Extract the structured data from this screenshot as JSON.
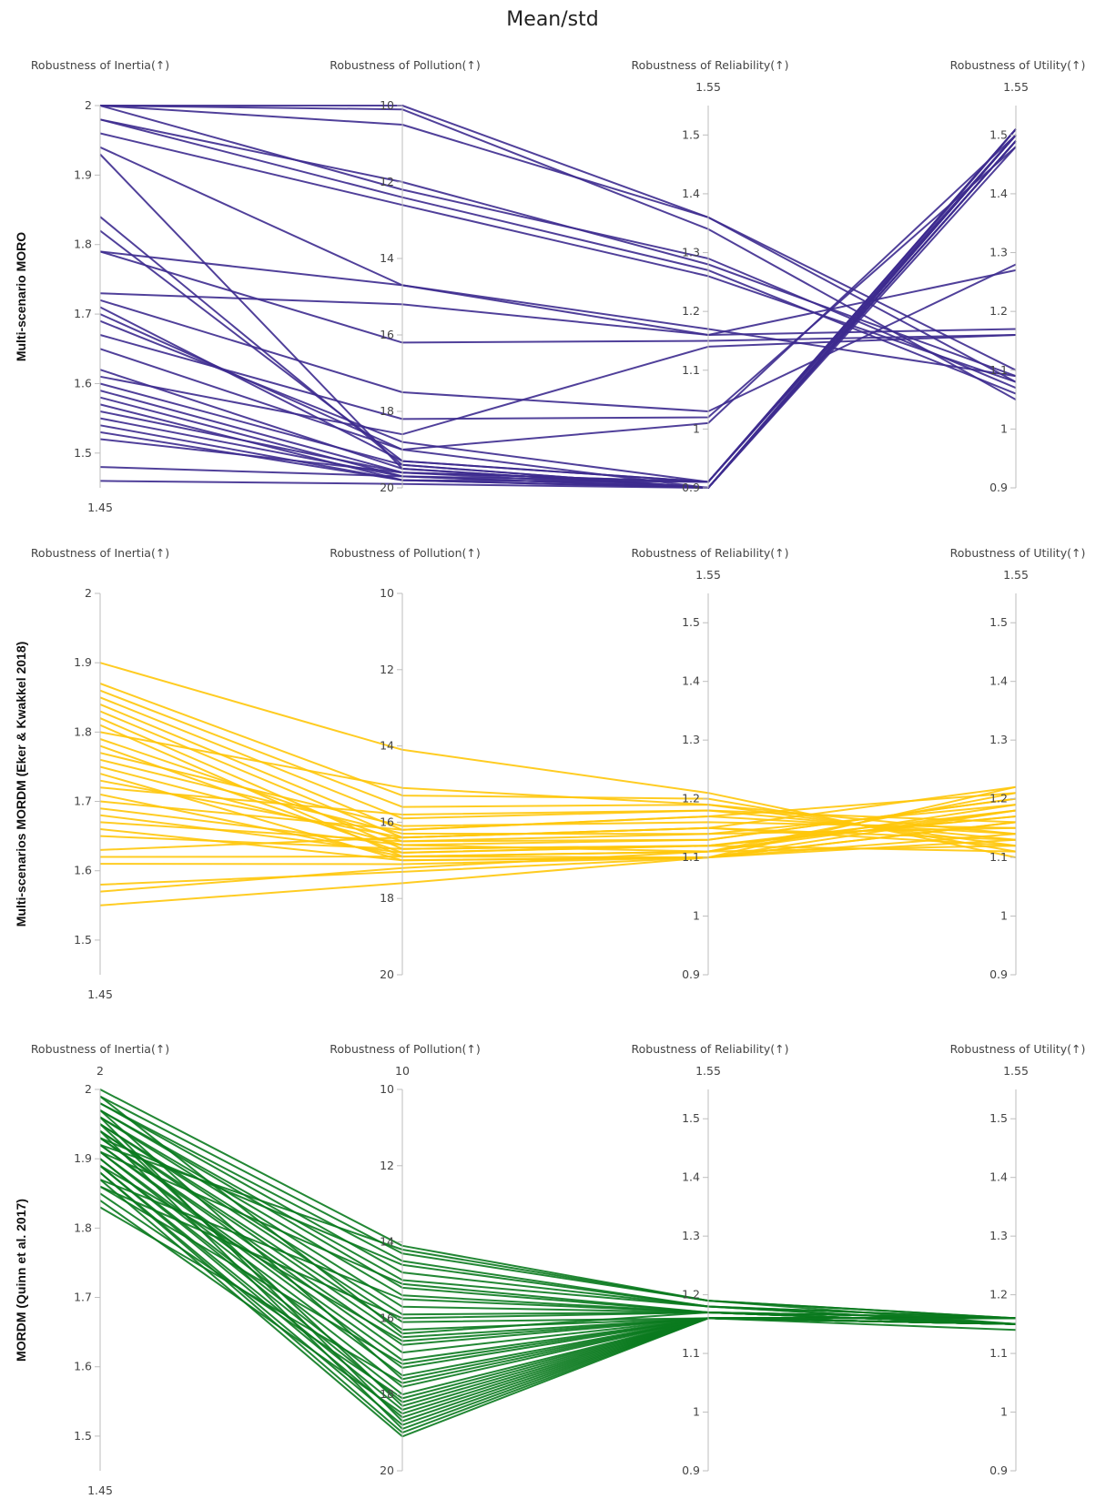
{
  "title": "Mean/std",
  "chart_data": [
    {
      "type": "parallel_coordinates",
      "row_label": "Multi-scenario MORO",
      "color": "#3d2b8f",
      "axes": [
        {
          "label": "Robustness of Inertia(↑)",
          "range": [
            1.45,
            2
          ],
          "ticks": [
            "1.5",
            "1.6",
            "1.7",
            "1.8",
            "1.9",
            "2"
          ],
          "ends": {
            "bottom": "1.45"
          }
        },
        {
          "label": "Robustness of Pollution(↑)",
          "range": [
            20,
            10
          ],
          "ticks": [
            "10",
            "12",
            "14",
            "16",
            "18",
            "20"
          ],
          "ends": {}
        },
        {
          "label": "Robustness of Reliability(↑)",
          "range": [
            0.9,
            1.55
          ],
          "ticks": [
            "0.9",
            "1",
            "1.1",
            "1.2",
            "1.3",
            "1.4",
            "1.5"
          ],
          "ends": {
            "top": "1.55"
          }
        },
        {
          "label": "Robustness of Utility(↑)",
          "range": [
            0.9,
            1.55
          ],
          "ticks": [
            "0.9",
            "1",
            "1.1",
            "1.2",
            "1.3",
            "1.4",
            "1.5"
          ],
          "ends": {
            "top": "1.55"
          }
        }
      ],
      "lines": [
        [
          2.0,
          10.1,
          1.34,
          1.05
        ],
        [
          2.0,
          10.0,
          1.36,
          1.08
        ],
        [
          2.0,
          10.5,
          1.36,
          1.1
        ],
        [
          2.0,
          12.2,
          1.29,
          1.07
        ],
        [
          1.98,
          12.0,
          1.28,
          1.09
        ],
        [
          1.98,
          12.4,
          1.27,
          1.06
        ],
        [
          1.96,
          12.6,
          1.26,
          1.08
        ],
        [
          1.94,
          14.7,
          1.17,
          1.09
        ],
        [
          1.93,
          19.5,
          0.9,
          1.5
        ],
        [
          1.84,
          19.4,
          0.9,
          1.49
        ],
        [
          1.82,
          19.3,
          0.91,
          1.51
        ],
        [
          1.79,
          14.7,
          1.16,
          1.17
        ],
        [
          1.79,
          16.2,
          1.15,
          1.16
        ],
        [
          1.73,
          15.2,
          1.16,
          1.27
        ],
        [
          1.72,
          17.5,
          1.03,
          1.28
        ],
        [
          1.71,
          19.3,
          0.91,
          1.5
        ],
        [
          1.7,
          19.0,
          0.9,
          1.49
        ],
        [
          1.69,
          18.8,
          0.91,
          1.51
        ],
        [
          1.67,
          18.2,
          1.02,
          1.48
        ],
        [
          1.65,
          19.0,
          1.01,
          1.5
        ],
        [
          1.62,
          19.5,
          0.9,
          1.5
        ],
        [
          1.61,
          18.6,
          1.14,
          1.16
        ],
        [
          1.6,
          19.4,
          0.9,
          1.49
        ],
        [
          1.59,
          19.6,
          0.91,
          1.5
        ],
        [
          1.58,
          19.7,
          0.9,
          1.48
        ],
        [
          1.57,
          19.8,
          0.9,
          1.5
        ],
        [
          1.56,
          19.6,
          0.91,
          1.51
        ],
        [
          1.55,
          19.7,
          0.9,
          1.5
        ],
        [
          1.54,
          19.8,
          0.9,
          1.49
        ],
        [
          1.53,
          19.8,
          0.91,
          1.5
        ],
        [
          1.52,
          19.6,
          0.9,
          1.51
        ],
        [
          1.48,
          19.7,
          0.91,
          1.5
        ],
        [
          1.46,
          19.9,
          0.9,
          1.49
        ]
      ]
    },
    {
      "type": "parallel_coordinates",
      "row_label": "Multi-scenarios MORDM (Eker & Kwakkel 2018)",
      "color": "#ffc60a",
      "axes": [
        {
          "label": "Robustness of Inertia(↑)",
          "range": [
            1.45,
            2
          ],
          "ticks": [
            "1.5",
            "1.6",
            "1.7",
            "1.8",
            "1.9",
            "2"
          ],
          "ends": {
            "bottom": "1.45"
          }
        },
        {
          "label": "Robustness of Pollution(↑)",
          "range": [
            20,
            10
          ],
          "ticks": [
            "10",
            "12",
            "14",
            "16",
            "18",
            "20"
          ],
          "ends": {}
        },
        {
          "label": "Robustness of Reliability(↑)",
          "range": [
            0.9,
            1.55
          ],
          "ticks": [
            "0.9",
            "1",
            "1.1",
            "1.2",
            "1.3",
            "1.4",
            "1.5"
          ],
          "ends": {
            "top": "1.55"
          }
        },
        {
          "label": "Robustness of Utility(↑)",
          "range": [
            0.9,
            1.55
          ],
          "ticks": [
            "0.9",
            "1",
            "1.1",
            "1.2",
            "1.3",
            "1.4",
            "1.5"
          ],
          "ends": {
            "top": "1.55"
          }
        }
      ],
      "lines": [
        [
          1.9,
          14.1,
          1.21,
          1.1
        ],
        [
          1.87,
          15.3,
          1.2,
          1.11
        ],
        [
          1.86,
          15.6,
          1.19,
          1.12
        ],
        [
          1.85,
          15.9,
          1.18,
          1.13
        ],
        [
          1.84,
          16.2,
          1.17,
          1.21
        ],
        [
          1.83,
          16.4,
          1.15,
          1.22
        ],
        [
          1.82,
          16.7,
          1.12,
          1.18
        ],
        [
          1.81,
          16.9,
          1.1,
          1.16
        ],
        [
          1.8,
          15.1,
          1.19,
          1.14
        ],
        [
          1.79,
          16.5,
          1.13,
          1.2
        ],
        [
          1.78,
          16.8,
          1.12,
          1.17
        ],
        [
          1.77,
          16.1,
          1.16,
          1.15
        ],
        [
          1.76,
          16.3,
          1.14,
          1.19
        ],
        [
          1.75,
          16.6,
          1.11,
          1.21
        ],
        [
          1.74,
          17.0,
          1.1,
          1.13
        ],
        [
          1.73,
          16.4,
          1.15,
          1.12
        ],
        [
          1.72,
          15.8,
          1.18,
          1.16
        ],
        [
          1.71,
          16.9,
          1.11,
          1.18
        ],
        [
          1.7,
          16.2,
          1.17,
          1.14
        ],
        [
          1.69,
          16.6,
          1.13,
          1.2
        ],
        [
          1.68,
          16.8,
          1.12,
          1.11
        ],
        [
          1.67,
          16.5,
          1.14,
          1.15
        ],
        [
          1.66,
          17.0,
          1.1,
          1.22
        ],
        [
          1.65,
          16.7,
          1.12,
          1.17
        ],
        [
          1.63,
          16.4,
          1.15,
          1.13
        ],
        [
          1.62,
          16.9,
          1.11,
          1.19
        ],
        [
          1.61,
          17.1,
          1.1,
          1.16
        ],
        [
          1.58,
          17.3,
          1.1,
          1.14
        ],
        [
          1.57,
          17.2,
          1.11,
          1.12
        ],
        [
          1.55,
          17.6,
          1.1,
          1.18
        ]
      ]
    },
    {
      "type": "parallel_coordinates",
      "row_label": "MORDM (Quinn et al. 2017)",
      "color": "#0a7a1e",
      "axes": [
        {
          "label": "Robustness of Inertia(↑)",
          "range": [
            1.45,
            2
          ],
          "ticks": [
            "1.5",
            "1.6",
            "1.7",
            "1.8",
            "1.9",
            "2"
          ],
          "ends": {
            "top": "2",
            "bottom": "1.45"
          }
        },
        {
          "label": "Robustness of Pollution(↑)",
          "range": [
            20,
            10
          ],
          "ticks": [
            "10",
            "12",
            "14",
            "16",
            "18",
            "20"
          ],
          "ends": {
            "top": "10"
          }
        },
        {
          "label": "Robustness of Reliability(↑)",
          "range": [
            0.9,
            1.55
          ],
          "ticks": [
            "0.9",
            "1",
            "1.1",
            "1.2",
            "1.3",
            "1.4",
            "1.5"
          ],
          "ends": {
            "top": "1.55"
          }
        },
        {
          "label": "Robustness of Utility(↑)",
          "range": [
            0.9,
            1.55
          ],
          "ticks": [
            "0.9",
            "1",
            "1.1",
            "1.2",
            "1.3",
            "1.4",
            "1.5"
          ],
          "ends": {
            "top": "1.55"
          }
        }
      ],
      "lines": [
        [
          2.0,
          14.1,
          1.19,
          1.16
        ],
        [
          1.99,
          14.3,
          1.19,
          1.16
        ],
        [
          1.98,
          14.5,
          1.18,
          1.15
        ],
        [
          1.98,
          14.8,
          1.18,
          1.16
        ],
        [
          1.97,
          15.0,
          1.18,
          1.15
        ],
        [
          1.97,
          15.2,
          1.17,
          1.16
        ],
        [
          1.96,
          15.4,
          1.17,
          1.15
        ],
        [
          1.96,
          15.7,
          1.17,
          1.16
        ],
        [
          1.95,
          15.9,
          1.17,
          1.15
        ],
        [
          1.95,
          16.1,
          1.16,
          1.16
        ],
        [
          1.94,
          16.3,
          1.16,
          1.15
        ],
        [
          1.94,
          16.5,
          1.16,
          1.16
        ],
        [
          1.93,
          16.7,
          1.16,
          1.15
        ],
        [
          1.93,
          16.9,
          1.16,
          1.16
        ],
        [
          1.92,
          17.1,
          1.16,
          1.15
        ],
        [
          1.92,
          17.3,
          1.16,
          1.16
        ],
        [
          1.91,
          17.5,
          1.16,
          1.15
        ],
        [
          1.91,
          17.8,
          1.16,
          1.16
        ],
        [
          1.9,
          18.0,
          1.16,
          1.15
        ],
        [
          1.9,
          18.2,
          1.16,
          1.16
        ],
        [
          1.89,
          18.4,
          1.16,
          1.15
        ],
        [
          1.89,
          18.6,
          1.16,
          1.16
        ],
        [
          1.88,
          18.8,
          1.16,
          1.15
        ],
        [
          1.88,
          19.0,
          1.16,
          1.14
        ],
        [
          1.87,
          19.1,
          1.16,
          1.16
        ],
        [
          1.87,
          15.5,
          1.17,
          1.15
        ],
        [
          1.86,
          16.0,
          1.17,
          1.16
        ],
        [
          1.86,
          17.2,
          1.16,
          1.15
        ],
        [
          1.85,
          18.1,
          1.16,
          1.16
        ],
        [
          1.84,
          18.5,
          1.16,
          1.15
        ],
        [
          1.83,
          17.7,
          1.16,
          1.16
        ],
        [
          1.99,
          16.4,
          1.17,
          1.15
        ],
        [
          1.97,
          17.6,
          1.16,
          1.16
        ],
        [
          1.95,
          18.3,
          1.16,
          1.15
        ],
        [
          1.93,
          14.6,
          1.18,
          1.16
        ],
        [
          1.91,
          15.1,
          1.17,
          1.15
        ],
        [
          1.89,
          16.6,
          1.16,
          1.16
        ],
        [
          1.96,
          18.7,
          1.16,
          1.15
        ],
        [
          1.94,
          18.9,
          1.16,
          1.16
        ],
        [
          1.92,
          14.2,
          1.19,
          1.15
        ]
      ]
    }
  ]
}
